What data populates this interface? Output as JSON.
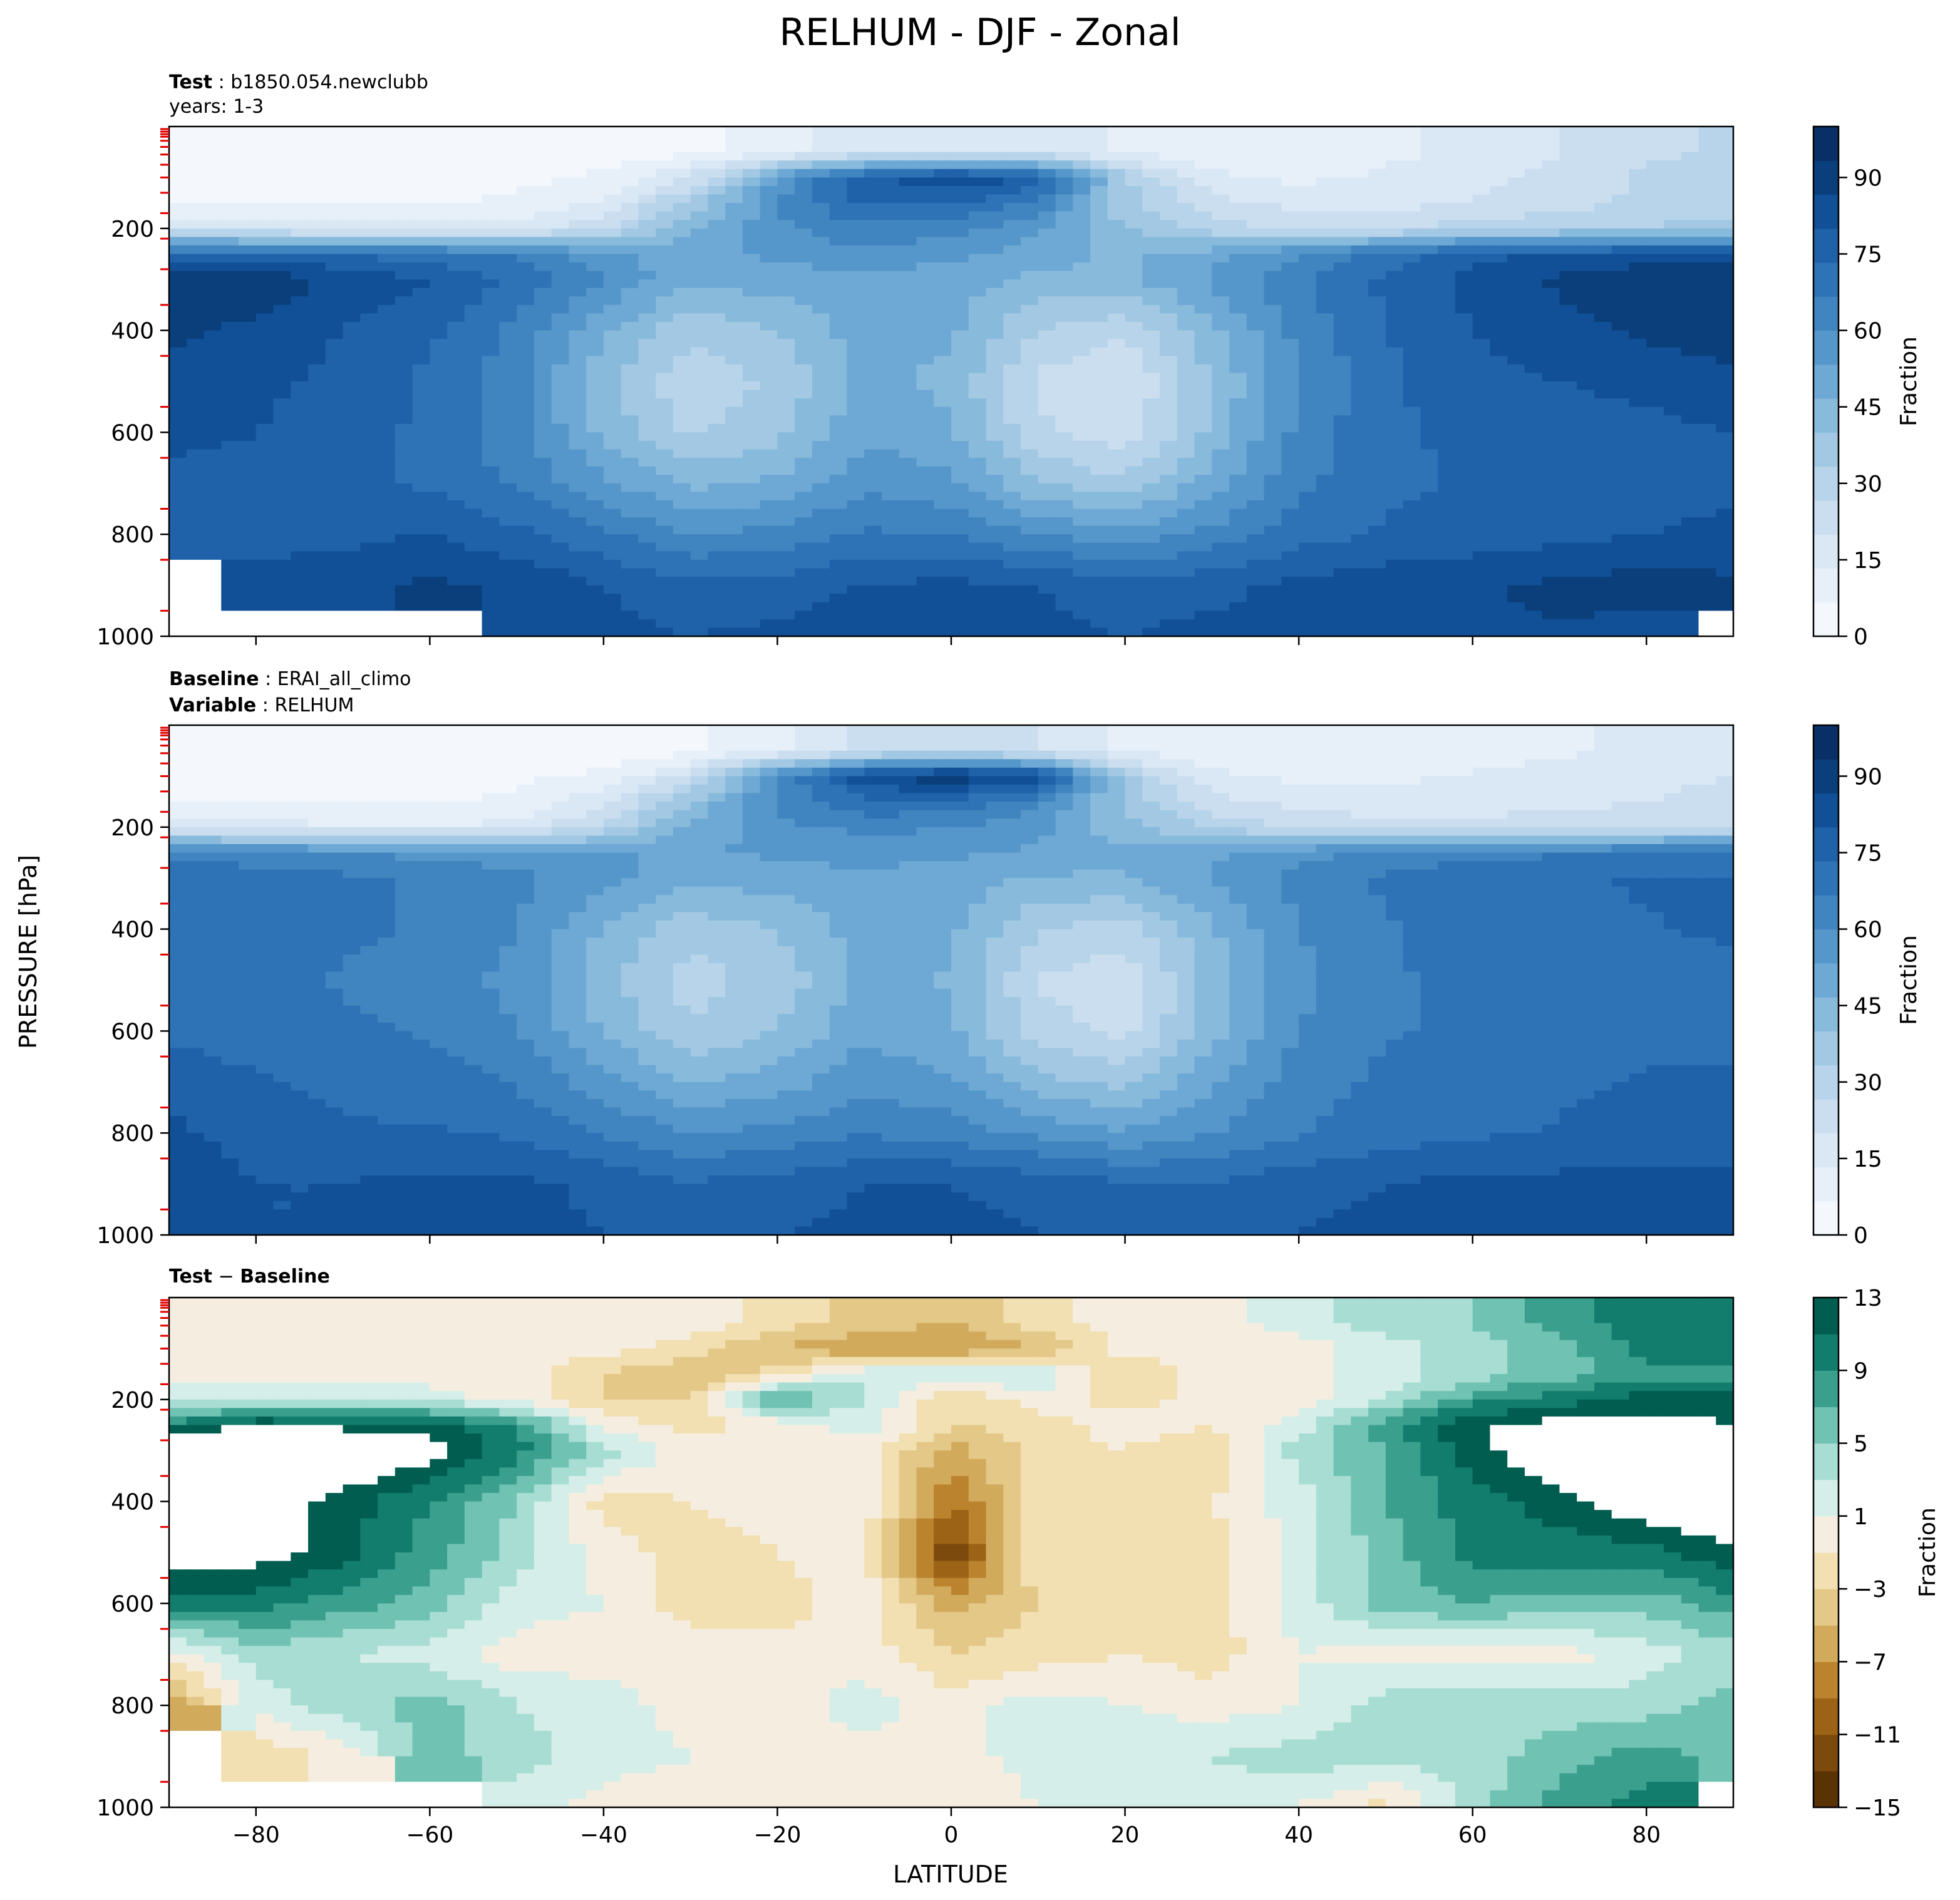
{
  "figure": {
    "title": "RELHUM - DJF - Zonal",
    "shared_ylabel": "PRESSURE [hPa]",
    "shared_xlabel": "LATITUDE"
  },
  "panels": {
    "test": {
      "line1_key": "Test",
      "line1_value": "b1850.054.newclubb",
      "line2": "years: 1-3"
    },
    "baseline": {
      "line1_key": "Baseline",
      "line1_value": "ERAI_all_climo",
      "line2_key": "Variable",
      "line2_value": "RELHUM"
    },
    "diff": {
      "title_a": "Test",
      "title_sep": " − ",
      "title_b": "Baseline"
    }
  },
  "colors": {
    "blues": [
      "#f4f8fd",
      "#e7f0f9",
      "#dae8f5",
      "#cbdeef",
      "#b8d4ea",
      "#a2c8e3",
      "#88badc",
      "#6ea8d4",
      "#5597ca",
      "#4085c0",
      "#2e73b6",
      "#1f62a9",
      "#115096",
      "#0a3f7c",
      "#083066"
    ],
    "diverging": [
      "#5a3305",
      "#7c4a0c",
      "#9c6316",
      "#bb832e",
      "#d2aa5c",
      "#e4c888",
      "#f2dfb2",
      "#f5eee0",
      "#f3f5f4",
      "#d6eee9",
      "#a7ddd3",
      "#70c2b3",
      "#3b9f8e",
      "#127d6d",
      "#005d50",
      "#003d34"
    ]
  },
  "chart_data": [
    {
      "type": "heatmap",
      "name": "test",
      "xlabel": "",
      "ylabel": "",
      "xlim": [
        -90,
        90
      ],
      "ylim": [
        1000,
        0
      ],
      "x_ticks": [
        -80,
        -60,
        -40,
        -20,
        0,
        20,
        40,
        60,
        80
      ],
      "y_ticks": [
        200,
        400,
        600,
        800,
        1000
      ],
      "colorbar": {
        "label": "Fraction",
        "ticks": [
          0,
          15,
          30,
          45,
          60,
          75,
          90
        ],
        "range": [
          0,
          100
        ]
      },
      "x": [
        -90,
        -80,
        -70,
        -60,
        -50,
        -40,
        -30,
        -20,
        -10,
        0,
        10,
        20,
        30,
        40,
        50,
        60,
        70,
        80,
        90
      ],
      "levels_hPa": [
        50,
        100,
        150,
        200,
        250,
        300,
        400,
        500,
        600,
        700,
        800,
        900,
        1000
      ],
      "values": [
        [
          2,
          2,
          2,
          2,
          2,
          3,
          5,
          10,
          18,
          20,
          18,
          12,
          8,
          10,
          12,
          15,
          20,
          25,
          28
        ],
        [
          4,
          4,
          4,
          4,
          5,
          8,
          20,
          55,
          78,
          85,
          80,
          35,
          15,
          12,
          14,
          18,
          22,
          28,
          30
        ],
        [
          6,
          6,
          6,
          6,
          8,
          15,
          35,
          60,
          75,
          75,
          65,
          35,
          22,
          18,
          18,
          20,
          24,
          28,
          30
        ],
        [
          20,
          18,
          16,
          15,
          15,
          25,
          45,
          58,
          65,
          62,
          55,
          40,
          30,
          25,
          25,
          30,
          32,
          34,
          35
        ],
        [
          75,
          75,
          72,
          70,
          65,
          55,
          50,
          55,
          58,
          55,
          50,
          45,
          50,
          60,
          70,
          78,
          80,
          82,
          83
        ],
        [
          90,
          92,
          85,
          80,
          72,
          60,
          48,
          50,
          52,
          50,
          45,
          45,
          55,
          66,
          75,
          82,
          88,
          92,
          92
        ],
        [
          88,
          85,
          80,
          75,
          65,
          48,
          35,
          40,
          50,
          48,
          33,
          28,
          45,
          62,
          73,
          80,
          84,
          88,
          90
        ],
        [
          85,
          82,
          78,
          72,
          62,
          42,
          28,
          35,
          48,
          45,
          25,
          20,
          40,
          60,
          72,
          78,
          80,
          82,
          85
        ],
        [
          82,
          80,
          76,
          72,
          62,
          45,
          32,
          38,
          52,
          48,
          28,
          22,
          42,
          62,
          72,
          75,
          76,
          78,
          80
        ],
        [
          78,
          78,
          75,
          72,
          66,
          55,
          45,
          48,
          58,
          55,
          40,
          35,
          50,
          65,
          72,
          74,
          74,
          76,
          78
        ],
        [
          75,
          78,
          78,
          80,
          75,
          68,
          60,
          62,
          68,
          66,
          60,
          55,
          62,
          70,
          74,
          76,
          78,
          80,
          82
        ],
        [
          null,
          82,
          84,
          88,
          86,
          80,
          75,
          76,
          80,
          82,
          80,
          76,
          78,
          82,
          84,
          86,
          88,
          90,
          88
        ],
        [
          null,
          null,
          null,
          null,
          84,
          82,
          80,
          82,
          86,
          84,
          82,
          80,
          82,
          82,
          84,
          86,
          86,
          84,
          null
        ]
      ]
    },
    {
      "type": "heatmap",
      "name": "baseline",
      "xlabel": "",
      "ylabel": "",
      "xlim": [
        -90,
        90
      ],
      "ylim": [
        1000,
        0
      ],
      "x_ticks": [
        -80,
        -60,
        -40,
        -20,
        0,
        20,
        40,
        60,
        80
      ],
      "y_ticks": [
        200,
        400,
        600,
        800,
        1000
      ],
      "colorbar": {
        "label": "Fraction",
        "ticks": [
          0,
          15,
          30,
          45,
          60,
          75,
          90
        ],
        "range": [
          0,
          100
        ]
      },
      "x": [
        -90,
        -80,
        -70,
        -60,
        -50,
        -40,
        -30,
        -20,
        -10,
        0,
        10,
        20,
        30,
        40,
        50,
        60,
        70,
        80,
        90
      ],
      "levels_hPa": [
        50,
        100,
        150,
        200,
        250,
        300,
        400,
        500,
        600,
        700,
        800,
        900,
        1000
      ],
      "values": [
        [
          2,
          2,
          2,
          2,
          2,
          3,
          5,
          12,
          22,
          25,
          20,
          12,
          8,
          8,
          8,
          10,
          12,
          15,
          18
        ],
        [
          4,
          4,
          4,
          4,
          5,
          8,
          22,
          60,
          85,
          92,
          85,
          35,
          15,
          12,
          12,
          14,
          16,
          18,
          20
        ],
        [
          6,
          6,
          6,
          6,
          8,
          18,
          40,
          62,
          72,
          72,
          62,
          38,
          22,
          18,
          16,
          16,
          18,
          20,
          22
        ],
        [
          18,
          16,
          14,
          14,
          15,
          28,
          48,
          58,
          62,
          60,
          55,
          42,
          32,
          25,
          22,
          22,
          24,
          25,
          26
        ],
        [
          65,
          62,
          60,
          58,
          56,
          55,
          52,
          55,
          56,
          55,
          52,
          48,
          52,
          58,
          62,
          65,
          66,
          68,
          70
        ],
        [
          72,
          70,
          68,
          66,
          62,
          56,
          48,
          50,
          52,
          50,
          46,
          46,
          54,
          62,
          68,
          70,
          72,
          74,
          74
        ],
        [
          72,
          70,
          68,
          66,
          60,
          46,
          36,
          40,
          50,
          48,
          34,
          30,
          46,
          60,
          66,
          70,
          72,
          73,
          74
        ],
        [
          70,
          68,
          66,
          64,
          58,
          42,
          30,
          36,
          48,
          46,
          26,
          22,
          42,
          58,
          66,
          68,
          70,
          72,
          72
        ],
        [
          72,
          70,
          68,
          66,
          60,
          46,
          34,
          40,
          52,
          48,
          30,
          24,
          44,
          60,
          66,
          68,
          70,
          72,
          72
        ],
        [
          78,
          74,
          72,
          70,
          66,
          56,
          46,
          50,
          58,
          54,
          42,
          38,
          52,
          64,
          68,
          70,
          72,
          74,
          74
        ],
        [
          82,
          76,
          74,
          74,
          72,
          66,
          60,
          62,
          66,
          64,
          58,
          54,
          60,
          66,
          70,
          72,
          74,
          76,
          76
        ],
        [
          86,
          80,
          80,
          82,
          82,
          78,
          74,
          76,
          80,
          80,
          78,
          74,
          74,
          78,
          80,
          82,
          82,
          82,
          82
        ],
        [
          84,
          80,
          80,
          82,
          82,
          80,
          78,
          80,
          82,
          82,
          80,
          78,
          78,
          80,
          82,
          84,
          84,
          84,
          84
        ]
      ]
    },
    {
      "type": "heatmap",
      "name": "difference",
      "xlabel": "LATITUDE",
      "ylabel": "PRESSURE [hPa]",
      "xlim": [
        -90,
        90
      ],
      "ylim": [
        1000,
        0
      ],
      "x_ticks": [
        -80,
        -60,
        -40,
        -20,
        0,
        20,
        40,
        60,
        80
      ],
      "y_ticks": [
        200,
        400,
        600,
        800,
        1000
      ],
      "colorbar": {
        "label": "Fraction",
        "ticks": [
          -15,
          -11,
          -7,
          -3,
          1,
          5,
          9,
          13
        ],
        "range": [
          -15,
          13
        ]
      },
      "x": [
        -90,
        -80,
        -70,
        -60,
        -50,
        -40,
        -30,
        -20,
        -10,
        0,
        10,
        20,
        30,
        40,
        50,
        60,
        70,
        80,
        90
      ],
      "levels_hPa": [
        50,
        100,
        150,
        200,
        250,
        300,
        400,
        500,
        600,
        700,
        800,
        900,
        1000
      ],
      "values": [
        [
          0,
          0,
          0,
          0,
          0,
          0,
          0,
          -2,
          -4,
          -5,
          -2,
          0,
          0,
          2,
          4,
          5,
          8,
          10,
          10
        ],
        [
          0,
          0,
          0,
          0,
          0,
          0,
          -2,
          -5,
          -7,
          -7,
          -5,
          0,
          0,
          0,
          2,
          4,
          6,
          10,
          10
        ],
        [
          0,
          0,
          0,
          0,
          0,
          -3,
          -5,
          -2,
          3,
          3,
          3,
          -3,
          0,
          0,
          2,
          4,
          6,
          8,
          8
        ],
        [
          2,
          2,
          2,
          2,
          0,
          -3,
          -3,
          8,
          3,
          -3,
          0,
          -2,
          0,
          0,
          3,
          8,
          10,
          12,
          12
        ],
        [
          10,
          13,
          12,
          12,
          9,
          0,
          -2,
          0,
          2,
          -3,
          -2,
          0,
          -1,
          2,
          8,
          13,
          14,
          14,
          13
        ],
        [
          18,
          22,
          17,
          14,
          10,
          4,
          0,
          0,
          0,
          -6,
          -2,
          -1,
          -3,
          4,
          7,
          12,
          16,
          18,
          18
        ],
        [
          16,
          15,
          12,
          9,
          5,
          -2,
          -1,
          0,
          0,
          -9,
          -2,
          -2,
          -1,
          2,
          7,
          10,
          12,
          15,
          16
        ],
        [
          15,
          14,
          12,
          8,
          4,
          0,
          -2,
          -1,
          0,
          -13,
          -1,
          -2,
          -2,
          2,
          6,
          10,
          10,
          10,
          13
        ],
        [
          10,
          10,
          8,
          6,
          2,
          1,
          -2,
          -2,
          0,
          -6,
          -3,
          -2,
          -2,
          2,
          6,
          7,
          6,
          6,
          8
        ],
        [
          0,
          4,
          3,
          2,
          0,
          0,
          0,
          0,
          0,
          -3,
          -2,
          -1,
          -2,
          1,
          0,
          0,
          0,
          2,
          4
        ],
        [
          -7,
          2,
          4,
          6,
          3,
          2,
          0,
          0,
          2,
          0,
          2,
          1,
          0,
          1,
          4,
          4,
          4,
          4,
          6
        ],
        [
          null,
          -3,
          0,
          6,
          4,
          2,
          1,
          0,
          0,
          0,
          2,
          2,
          3,
          4,
          4,
          4,
          6,
          8,
          6
        ],
        [
          null,
          null,
          null,
          null,
          2,
          0,
          0,
          0,
          0,
          -1,
          1,
          2,
          2,
          1,
          -2,
          4,
          8,
          10,
          null
        ]
      ]
    }
  ]
}
